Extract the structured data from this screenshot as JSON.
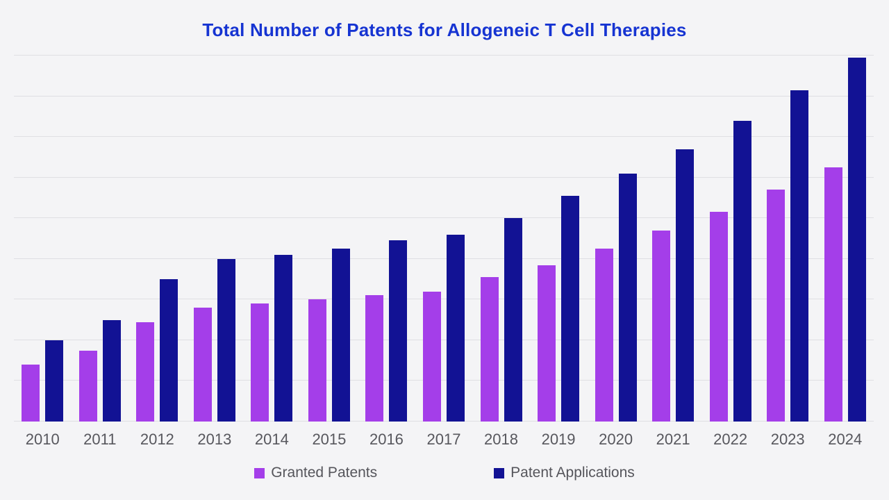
{
  "page": {
    "background_color": "#f4f4f6",
    "title_color": "#1634d2",
    "gridline_color": "#dfdfe3",
    "axis_label_color": "#57575d",
    "legend_text_color": "#55555b"
  },
  "chart_data": {
    "type": "bar",
    "title": "Total Number of Patents for Allogeneic T Cell Therapies",
    "xlabel": "",
    "ylabel": "",
    "categories": [
      "2010",
      "2011",
      "2012",
      "2013",
      "2014",
      "2015",
      "2016",
      "2017",
      "2018",
      "2019",
      "2020",
      "2021",
      "2022",
      "2023",
      "2024"
    ],
    "series": [
      {
        "name": "Granted Patents",
        "color": "#a43ee9",
        "values": [
          28,
          35,
          49,
          56,
          58,
          60,
          62,
          64,
          71,
          77,
          85,
          94,
          103,
          114,
          125
        ]
      },
      {
        "name": "Patent Applications",
        "color": "#121294",
        "values": [
          40,
          50,
          70,
          80,
          82,
          85,
          89,
          92,
          100,
          111,
          122,
          134,
          148,
          163,
          179
        ]
      }
    ],
    "ylim": [
      0,
      180
    ],
    "gridline_step": 20,
    "grid": true,
    "y_axis_tick_labels_visible": false,
    "legend_position": "bottom"
  }
}
